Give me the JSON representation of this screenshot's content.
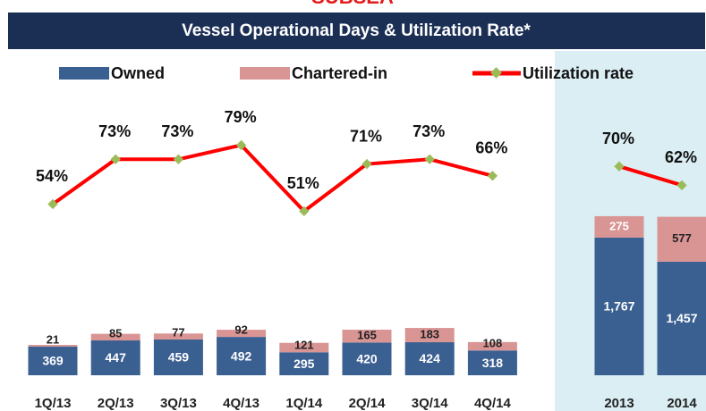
{
  "chart_data": {
    "type": "bar_line",
    "section_title": "SUBSEA",
    "title": "Vessel Operational Days & Utilization Rate*",
    "categories": [
      "1Q/13",
      "2Q/13",
      "3Q/13",
      "4Q/13",
      "1Q/14",
      "2Q/14",
      "3Q/14",
      "4Q/14",
      "2013",
      "2014"
    ],
    "series": [
      {
        "name": "Owned",
        "color": "#3a5f91",
        "values": [
          369,
          447,
          459,
          492,
          295,
          420,
          424,
          318,
          1767,
          1457
        ],
        "value_labels": [
          "369",
          "447",
          "459",
          "492",
          "295",
          "420",
          "424",
          "318",
          "1,767",
          "1,457"
        ]
      },
      {
        "name": "Chartered-in",
        "color": "#d99594",
        "values": [
          21,
          85,
          77,
          92,
          121,
          165,
          183,
          108,
          275,
          577
        ]
      },
      {
        "name": "Utilization rate",
        "color": "#ff0000",
        "marker_color": "#9bbb59",
        "axis": "y2",
        "values": [
          54,
          73,
          73,
          79,
          51,
          71,
          73,
          66,
          70,
          62
        ],
        "value_labels": [
          "54%",
          "73%",
          "73%",
          "79%",
          "51%",
          "71%",
          "73%",
          "66%",
          "70%",
          "62%"
        ]
      }
    ],
    "ylim": [
      0,
      2500
    ],
    "y2lim": [
      0,
      100
    ]
  }
}
